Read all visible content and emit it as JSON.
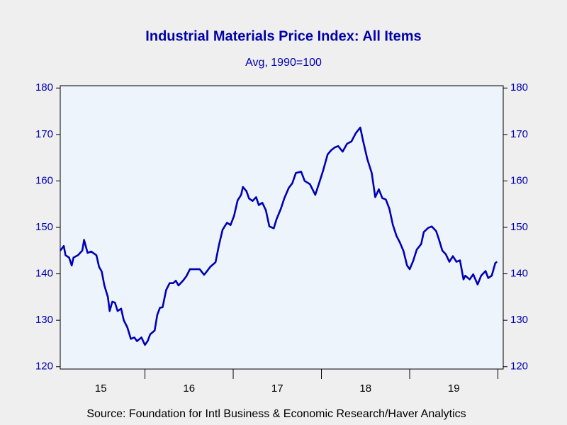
{
  "chart_data": {
    "type": "line",
    "title": "Industrial Materials Price Index: All Items",
    "subtitle": "Avg, 1990=100",
    "source": "Source:  Foundation for Intl Business & Economic Research/Haver Analytics",
    "x": [
      2015.04,
      2015.08,
      2015.1,
      2015.14,
      2015.17,
      2015.19,
      2015.24,
      2015.29,
      2015.31,
      2015.35,
      2015.39,
      2015.45,
      2015.48,
      2015.51,
      2015.54,
      2015.58,
      2015.6,
      2015.63,
      2015.66,
      2015.69,
      2015.73,
      2015.76,
      2015.8,
      2015.84,
      2015.88,
      2015.91,
      2015.96,
      2016.0,
      2016.03,
      2016.06,
      2016.11,
      2016.14,
      2016.17,
      2016.2,
      2016.24,
      2016.28,
      2016.32,
      2016.35,
      2016.38,
      2016.43,
      2016.47,
      2016.51,
      2016.56,
      2016.62,
      2016.67,
      2016.7,
      2016.74,
      2016.8,
      2016.84,
      2016.88,
      2016.93,
      2016.97,
      2017.01,
      2017.05,
      2017.09,
      2017.11,
      2017.15,
      2017.18,
      2017.22,
      2017.26,
      2017.29,
      2017.33,
      2017.37,
      2017.41,
      2017.46,
      2017.49,
      2017.54,
      2017.58,
      2017.63,
      2017.67,
      2017.71,
      2017.77,
      2017.81,
      2017.87,
      2017.93,
      2017.97,
      2018.02,
      2018.07,
      2018.11,
      2018.15,
      2018.19,
      2018.24,
      2018.29,
      2018.34,
      2018.39,
      2018.44,
      2018.47,
      2018.52,
      2018.57,
      2018.61,
      2018.65,
      2018.69,
      2018.73,
      2018.77,
      2018.81,
      2018.85,
      2018.89,
      2018.93,
      2018.97,
      2019.0,
      2019.04,
      2019.08,
      2019.13,
      2019.16,
      2019.21,
      2019.25,
      2019.3,
      2019.33,
      2019.37,
      2019.41,
      2019.45,
      2019.49,
      2019.53,
      2019.57,
      2019.61,
      2019.63,
      2019.68,
      2019.72,
      2019.77,
      2019.81,
      2019.86,
      2019.89,
      2019.93,
      2019.97,
      2019.99
    ],
    "series": [
      {
        "name": "Industrial Materials Price Index",
        "color": "#0000b4",
        "values": [
          145,
          146,
          144,
          143.5,
          141.8,
          143.5,
          144,
          145,
          147.3,
          144.5,
          144.8,
          144,
          141.5,
          140.5,
          137.5,
          135,
          132,
          134,
          133.8,
          132,
          132.5,
          130,
          128.5,
          126,
          126.3,
          125.5,
          126.3,
          124.7,
          125.5,
          127,
          127.8,
          131.2,
          132.7,
          132.8,
          136.5,
          138,
          138,
          138.5,
          137.5,
          138.5,
          139.5,
          141,
          141,
          141,
          139.8,
          140.5,
          141.5,
          142.5,
          146.3,
          149.5,
          151,
          150.5,
          152.5,
          155.8,
          157,
          158.7,
          157.8,
          156.2,
          155.7,
          156.5,
          154.8,
          155.3,
          153.7,
          150.2,
          149.8,
          151.7,
          154,
          156.3,
          158.5,
          159.5,
          161.7,
          162,
          160,
          159.3,
          157,
          159.3,
          162.3,
          165.7,
          166.6,
          167.2,
          167.5,
          166.3,
          168,
          168.5,
          170.3,
          171.5,
          168.8,
          164.7,
          161.7,
          156.5,
          158.2,
          156.3,
          156,
          154,
          150.5,
          148.2,
          146.7,
          144.9,
          141.8,
          141,
          142.8,
          145.2,
          146.4,
          149,
          149.9,
          150.2,
          149.2,
          147.5,
          145,
          144.2,
          142.6,
          143.8,
          142.6,
          142.9,
          138.8,
          139.6,
          138.8,
          139.9,
          137.7,
          139.6,
          140.6,
          139.1,
          139.6,
          142.3,
          142.6
        ]
      }
    ],
    "xlim": [
      2015.04,
      2020.06
    ],
    "xticks": [
      {
        "value": 2015.5,
        "label": "15"
      },
      {
        "value": 2016.5,
        "label": "16"
      },
      {
        "value": 2017.5,
        "label": "17"
      },
      {
        "value": 2018.5,
        "label": "18"
      },
      {
        "value": 2019.5,
        "label": "19"
      }
    ],
    "xtick_marks": [
      2016,
      2017,
      2018,
      2019,
      2020
    ],
    "ylim": [
      119.5,
      180.5
    ],
    "yticks": [
      120,
      130,
      140,
      150,
      160,
      170,
      180
    ],
    "grid": false
  }
}
